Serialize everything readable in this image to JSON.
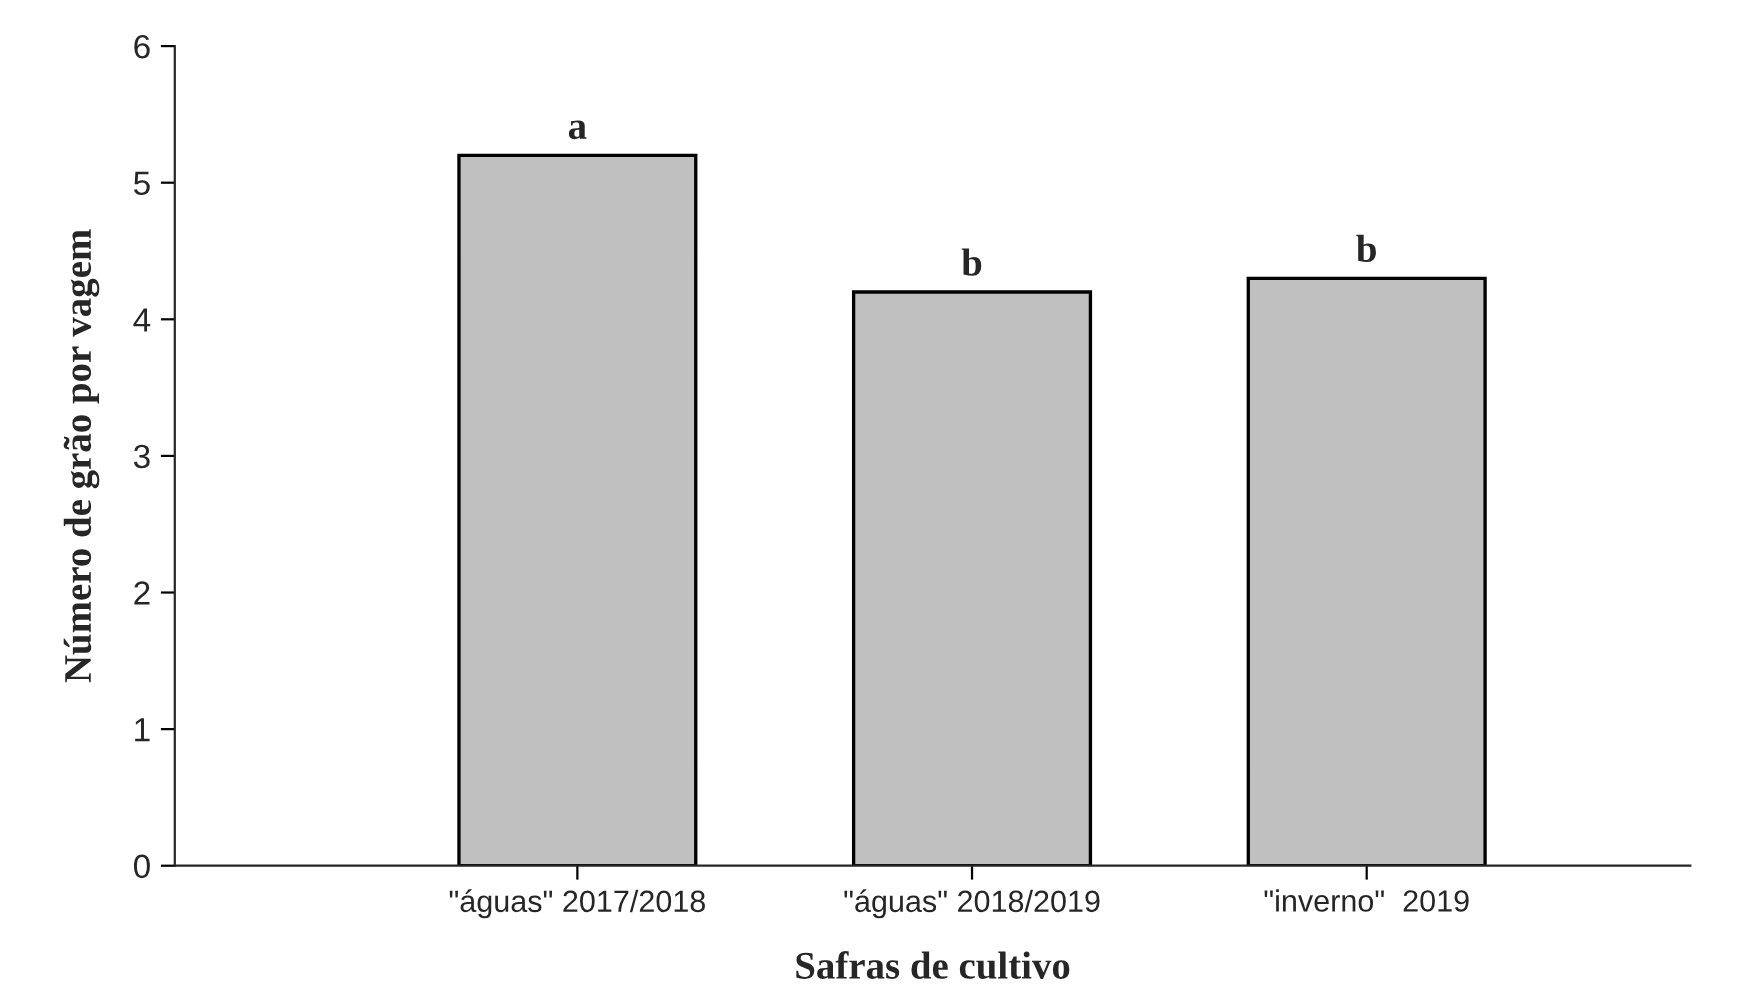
{
  "chart_data": {
    "type": "bar",
    "xlabel": "Safras de cultivo",
    "ylabel": "Número de grão por vagem",
    "categories": [
      "\"águas\" 2017/2018",
      "\"águas\" 2018/2019",
      "\"inverno\"  2019"
    ],
    "values": [
      5.2,
      4.2,
      4.3
    ],
    "color": "#c0c0c0",
    "ylim": [
      0,
      6
    ],
    "yticks": [
      0,
      1,
      2,
      3,
      4,
      5,
      6
    ],
    "grid": false,
    "legend": false,
    "annotations": [
      {
        "text": "a",
        "x": "\"águas\" 2017/2018",
        "y": 5.2
      },
      {
        "text": "b",
        "x": "\"águas\" 2018/2019",
        "y": 4.2
      },
      {
        "text": "b",
        "x": "\"inverno\"  2019",
        "y": 4.3
      }
    ]
  }
}
